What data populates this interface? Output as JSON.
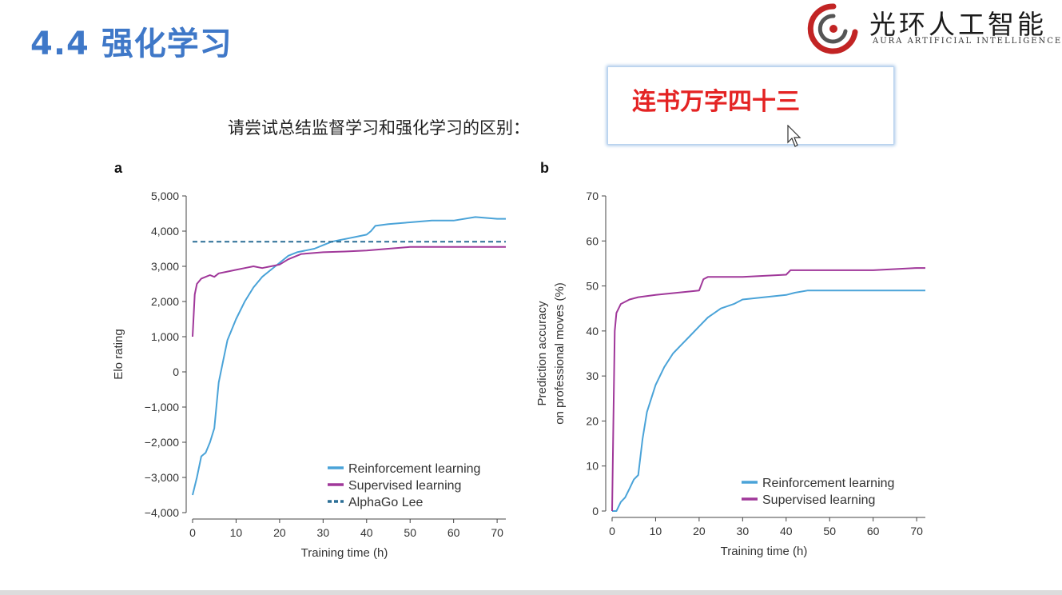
{
  "slide": {
    "title": "4.4 强化学习",
    "question": "请尝试总结监督学习和强化学习的区别：",
    "answer": "连书万字四十三"
  },
  "logo": {
    "cn": "光环人工智能",
    "en": "AURA ARTIFICIAL INTELLIGENCE"
  },
  "colors": {
    "title": "#3f78c8",
    "reinforcement": "#4aa3d8",
    "supervised": "#a0389a",
    "alphago": "#2b6f96",
    "answer": "#e42323"
  },
  "chart_data": [
    {
      "type": "line",
      "panel_label": "a",
      "xlabel": "Training time (h)",
      "ylabel": "Elo rating",
      "xlim": [
        0,
        72
      ],
      "ylim": [
        -4000,
        5000
      ],
      "xticks": [
        0,
        10,
        20,
        30,
        40,
        50,
        60,
        70
      ],
      "yticks": [
        -4000,
        -3000,
        -2000,
        -1000,
        0,
        1000,
        2000,
        3000,
        4000,
        5000
      ],
      "ytick_labels": [
        "−4,000",
        "−3,000",
        "−2,000",
        "−1,000",
        "0",
        "1,000",
        "2,000",
        "3,000",
        "4,000",
        "5,000"
      ],
      "legend_position": "bottom-right",
      "series": [
        {
          "name": "Reinforcement learning",
          "color": "#4aa3d8",
          "style": "solid",
          "x": [
            0,
            1,
            2,
            3,
            4,
            5,
            6,
            7,
            8,
            10,
            12,
            14,
            16,
            18,
            20,
            22,
            24,
            26,
            28,
            30,
            32,
            34,
            36,
            38,
            40,
            41,
            42,
            45,
            50,
            55,
            60,
            65,
            70,
            72
          ],
          "y": [
            -3500,
            -3000,
            -2400,
            -2300,
            -2000,
            -1600,
            -300,
            300,
            900,
            1500,
            2000,
            2400,
            2700,
            2900,
            3100,
            3300,
            3400,
            3450,
            3500,
            3600,
            3700,
            3750,
            3800,
            3850,
            3900,
            4000,
            4150,
            4200,
            4250,
            4300,
            4300,
            4400,
            4350,
            4350
          ]
        },
        {
          "name": "Supervised learning",
          "color": "#a0389a",
          "style": "solid",
          "x": [
            0,
            0.5,
            1,
            2,
            3,
            4,
            5,
            6,
            8,
            10,
            12,
            14,
            16,
            18,
            20,
            22,
            25,
            30,
            35,
            40,
            45,
            50,
            60,
            70,
            72
          ],
          "y": [
            1000,
            2200,
            2500,
            2650,
            2700,
            2750,
            2700,
            2800,
            2850,
            2900,
            2950,
            3000,
            2950,
            3000,
            3050,
            3200,
            3350,
            3400,
            3420,
            3450,
            3500,
            3550,
            3550,
            3550,
            3550
          ]
        },
        {
          "name": "AlphaGo Lee",
          "color": "#2b6f96",
          "style": "dashed",
          "x": [
            0,
            72
          ],
          "y": [
            3700,
            3700
          ]
        }
      ]
    },
    {
      "type": "line",
      "panel_label": "b",
      "xlabel": "Training time (h)",
      "ylabel": "Prediction accuracy on professional moves (%)",
      "ylabel_lines": [
        "Prediction accuracy",
        "on professional moves (%)"
      ],
      "xlim": [
        0,
        72
      ],
      "ylim": [
        0,
        70
      ],
      "xticks": [
        0,
        10,
        20,
        30,
        40,
        50,
        60,
        70
      ],
      "yticks": [
        0,
        10,
        20,
        30,
        40,
        50,
        60,
        70
      ],
      "ytick_labels": [
        "0",
        "10",
        "20",
        "30",
        "40",
        "50",
        "60",
        "70"
      ],
      "legend_position": "bottom-right",
      "series": [
        {
          "name": "Reinforcement learning",
          "color": "#4aa3d8",
          "style": "solid",
          "x": [
            0,
            1,
            2,
            3,
            4,
            5,
            6,
            7,
            8,
            10,
            12,
            14,
            16,
            18,
            20,
            22,
            25,
            28,
            30,
            35,
            40,
            42,
            45,
            50,
            60,
            70,
            72
          ],
          "y": [
            0,
            0,
            2,
            3,
            5,
            7,
            8,
            16,
            22,
            28,
            32,
            35,
            37,
            39,
            41,
            43,
            45,
            46,
            47,
            47.5,
            48,
            48.5,
            49,
            49,
            49,
            49,
            49
          ]
        },
        {
          "name": "Supervised learning",
          "color": "#a0389a",
          "style": "solid",
          "x": [
            0,
            0.3,
            0.6,
            1,
            2,
            4,
            6,
            10,
            15,
            20,
            21,
            22,
            30,
            40,
            41,
            45,
            50,
            60,
            70,
            72
          ],
          "y": [
            0,
            20,
            40,
            44,
            46,
            47,
            47.5,
            48,
            48.5,
            49,
            51.5,
            52,
            52,
            52.5,
            53.5,
            53.5,
            53.5,
            53.5,
            54,
            54
          ]
        }
      ]
    }
  ]
}
